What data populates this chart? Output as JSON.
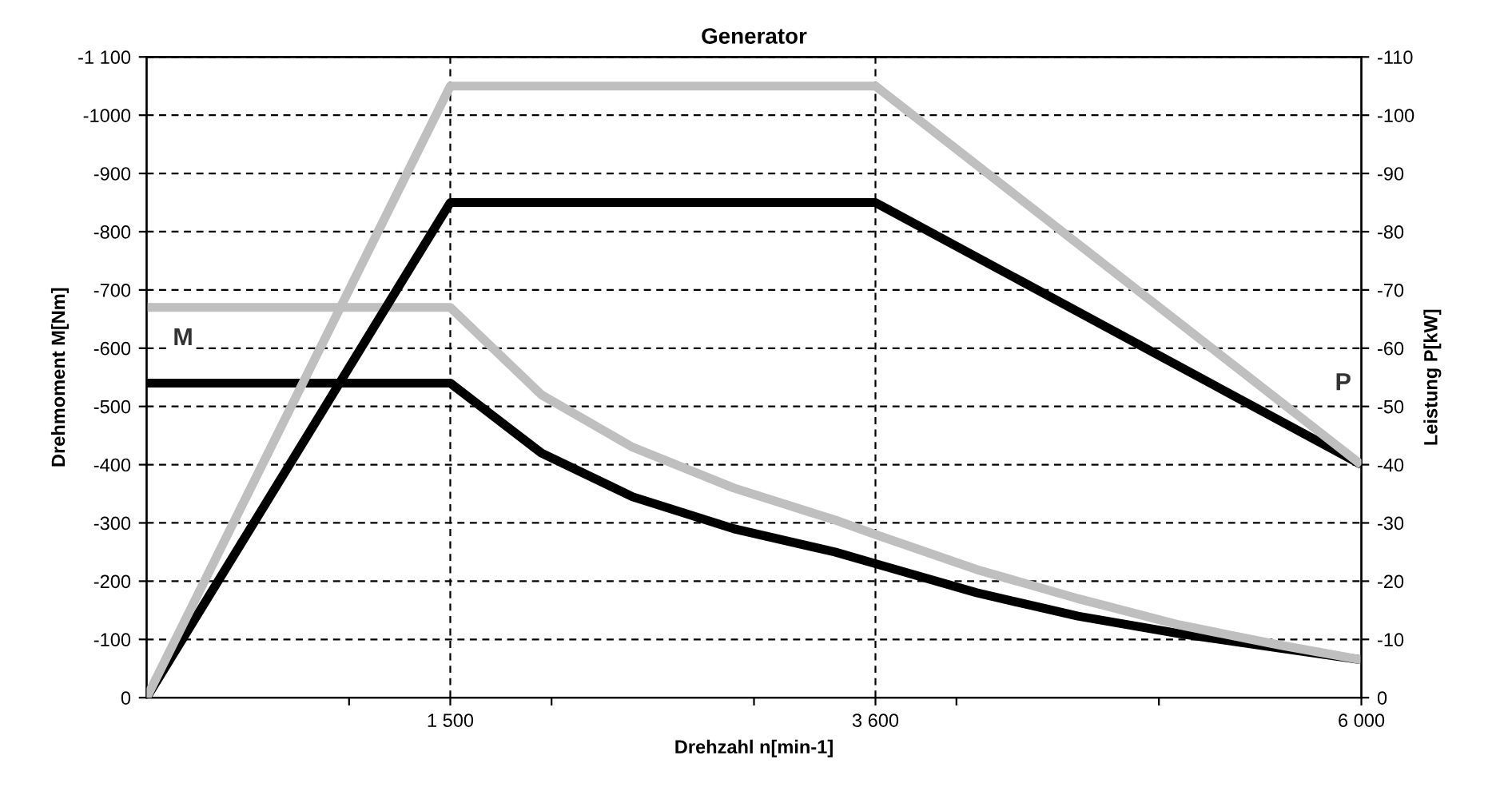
{
  "chart_data": {
    "type": "line",
    "title": "Generator",
    "xlabel": "Drehzahl n[min-1]",
    "ylabel": "Drehmoment M[Nm]",
    "y2label": "Leistung P[kW]",
    "xlim": [
      0,
      6000
    ],
    "xticks": [
      {
        "value": 1000,
        "label": null
      },
      {
        "value": 1500,
        "label": "1 500"
      },
      {
        "value": 2000,
        "label": null
      },
      {
        "value": 3000,
        "label": null
      },
      {
        "value": 3600,
        "label": "3 600"
      },
      {
        "value": 4000,
        "label": null
      },
      {
        "value": 5000,
        "label": null
      },
      {
        "value": 6000,
        "label": "6 000"
      }
    ],
    "ylim": [
      0,
      -1100
    ],
    "yticks": [
      0,
      -100,
      -200,
      -300,
      -400,
      -500,
      -600,
      -700,
      -800,
      -900,
      -1000,
      {
        "value": -1100,
        "label": "-1 100"
      }
    ],
    "y2lim": [
      0,
      -110
    ],
    "y2ticks": [
      0,
      -10,
      -20,
      -30,
      -40,
      -50,
      -60,
      -70,
      -80,
      -90,
      -100,
      -110
    ],
    "grid": "y",
    "legend": false,
    "line_style": "solid",
    "marker": "none",
    "ref_lines": [
      {
        "axis": "x",
        "value": 1500,
        "color": "#000000",
        "line_style": "dashed"
      },
      {
        "axis": "x",
        "value": 3600,
        "color": "#000000",
        "line_style": "dashed"
      }
    ],
    "series": [
      {
        "color": "#000000",
        "x": [
          0,
          1500,
          1950,
          2400,
          2900,
          3400,
          3600,
          4100,
          4600,
          5100,
          5600,
          6000
        ],
        "values": [
          -540,
          -540,
          -420,
          -345,
          -290,
          -250,
          -230,
          -180,
          -140,
          -110,
          -85,
          -65
        ]
      },
      {
        "color": "#bfbfbf",
        "x": [
          0,
          1500,
          1950,
          2400,
          2900,
          3400,
          3600,
          4100,
          4600,
          5100,
          5600,
          6000
        ],
        "values": [
          -670,
          -670,
          -520,
          -430,
          -360,
          -305,
          -280,
          -220,
          -170,
          -125,
          -90,
          -65
        ]
      },
      {
        "color": "#000000",
        "axis": "y2",
        "x": [
          0,
          1500,
          3600,
          6000
        ],
        "values": [
          0,
          -85,
          -85,
          -40
        ]
      },
      {
        "color": "#bfbfbf",
        "axis": "y2",
        "x": [
          0,
          1500,
          3600,
          6000
        ],
        "values": [
          0,
          -105,
          -105,
          -40
        ]
      }
    ],
    "annotations": [
      "M",
      "P"
    ]
  }
}
